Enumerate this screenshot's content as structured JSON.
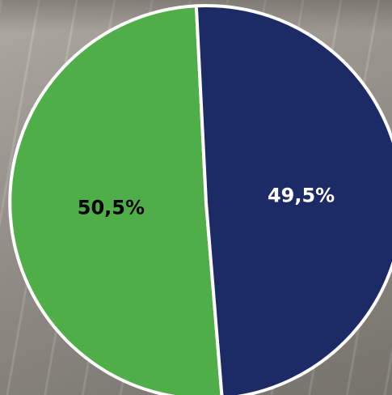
{
  "chart_data": {
    "type": "pie",
    "slices": [
      {
        "label": "50,5%",
        "value": 50.5,
        "color": "#4fae48",
        "label_color": "#000000"
      },
      {
        "label": "49,5%",
        "value": 49.5,
        "color": "#1c2a66",
        "label_color": "#ffffff"
      }
    ],
    "legend": "none",
    "border_color": "#ffffff"
  }
}
